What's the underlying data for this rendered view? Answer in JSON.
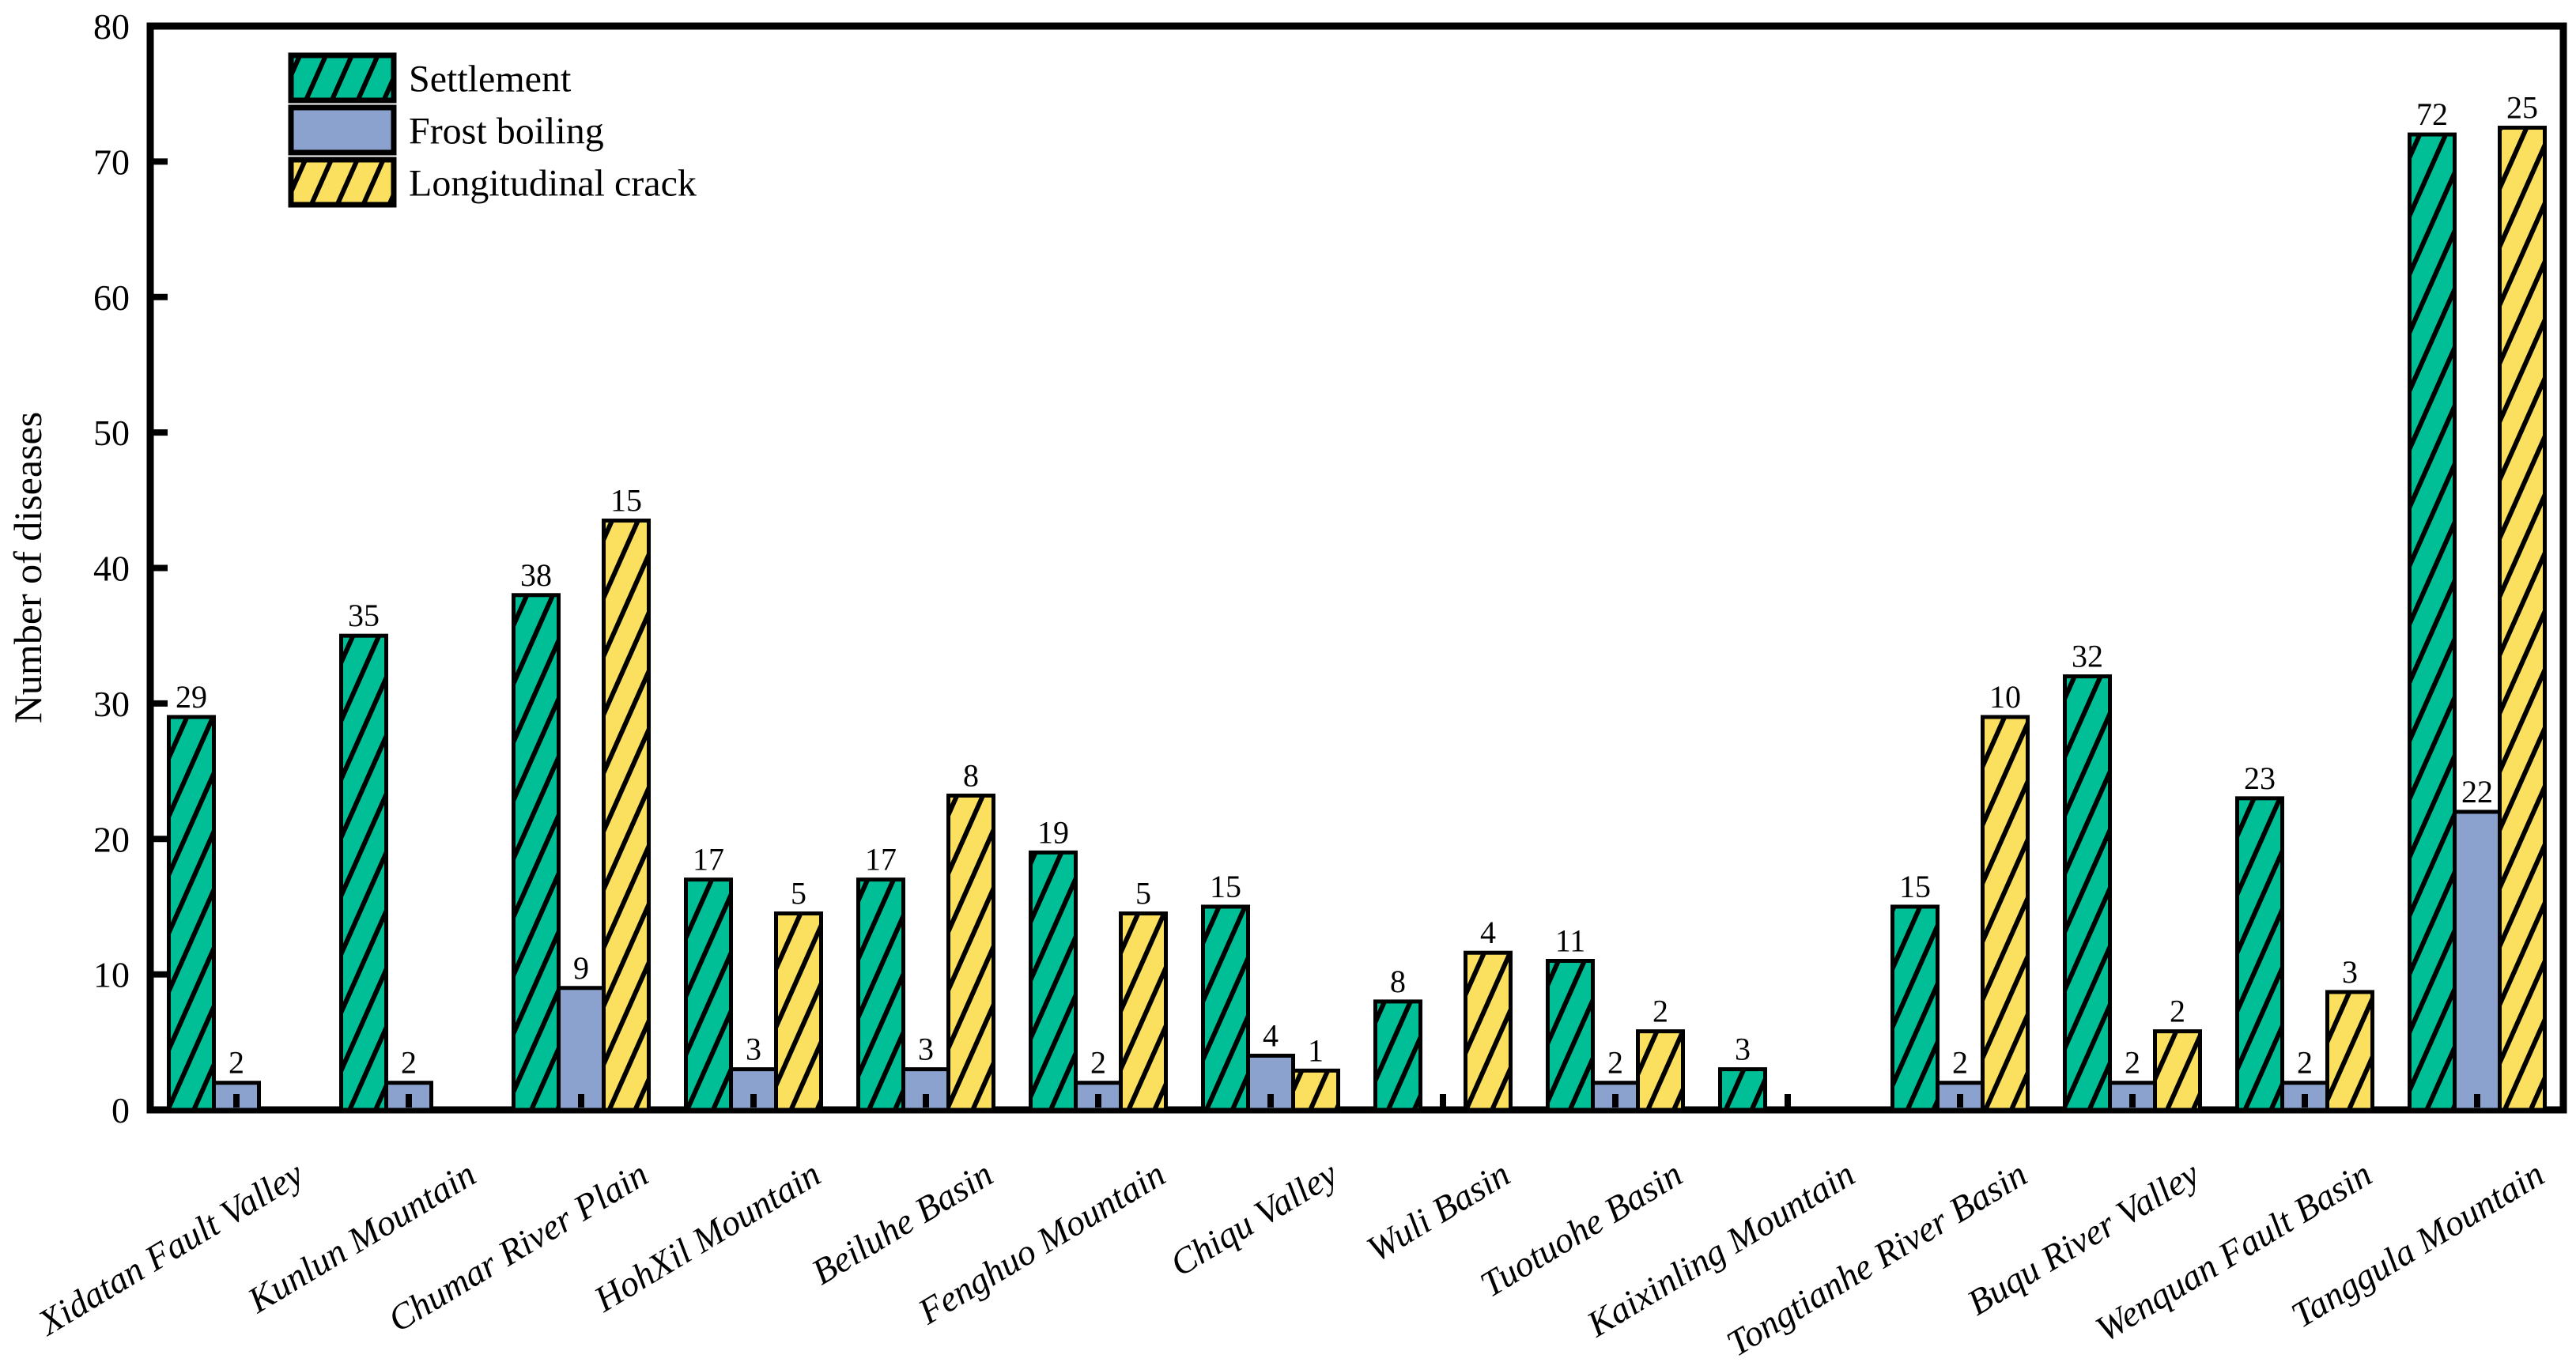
{
  "figure": {
    "background": "#ffffff",
    "text_color": "#000000"
  },
  "chart_data": {
    "type": "bar",
    "title": "",
    "xlabel": "",
    "ylabel": "Number of diseases",
    "ylim": [
      0,
      80
    ],
    "ytick_step": 10,
    "yticks": [
      0,
      10,
      20,
      30,
      40,
      50,
      60,
      70,
      80
    ],
    "grid": false,
    "plot_border": "box",
    "legend_position": "top-left",
    "bar_value_labels_visible": true,
    "outline_color": "#000000",
    "categories": [
      "Xidatan Fault Valley",
      "Kunlun Mountain",
      "Chumar River Plain",
      "HohXil Mountain",
      "Beiluhe Basin",
      "Fenghuo Mountain",
      "Chiqu Valley",
      "Wuli Basin",
      "Tuotuohe Basin",
      "Kaixinling Mountain",
      "Tongtianhe River Basin",
      "Buqu River Valley",
      "Wenquan Fault Basin",
      "Tanggula Mountain"
    ],
    "series": [
      {
        "name": "Settlement",
        "color": "#00BE96",
        "hatch": "/",
        "values": [
          29,
          35,
          38,
          17,
          17,
          19,
          15,
          8,
          11,
          3,
          15,
          32,
          23,
          72
        ],
        "drawn_height_multiplier": 1
      },
      {
        "name": "Frost boiling",
        "color": "#8BA2CE",
        "hatch": null,
        "values": [
          2,
          2,
          9,
          3,
          3,
          2,
          4,
          0,
          2,
          0,
          2,
          2,
          2,
          22
        ],
        "drawn_height_multiplier": 1
      },
      {
        "name": "Longitudinal crack",
        "color": "#FBDF5E",
        "hatch": "/",
        "values": [
          0,
          0,
          15,
          5,
          8,
          5,
          1,
          4,
          2,
          0,
          10,
          2,
          3,
          25
        ],
        "drawn_height_multiplier": 2.9
      }
    ]
  }
}
